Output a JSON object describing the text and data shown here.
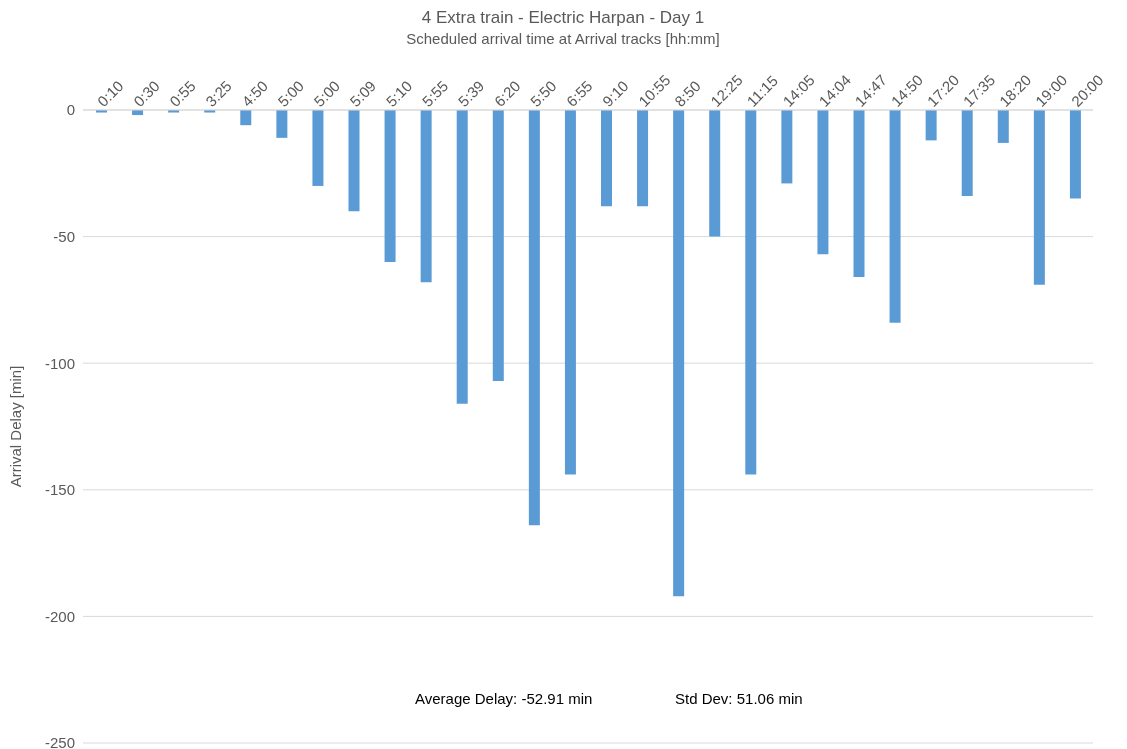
{
  "chart_data": {
    "type": "bar",
    "title": "4 Extra train - Electric Harpan - Day 1",
    "xlabel": "Scheduled arrival time at Arrival tracks [hh:mm]",
    "ylabel": "Arrival Delay [min]",
    "categories": [
      "0:10",
      "0:30",
      "0:55",
      "3:25",
      "4:50",
      "5:00",
      "5:00",
      "5:09",
      "5:10",
      "5:55",
      "5:39",
      "6:20",
      "5:50",
      "6:55",
      "9:10",
      "10:55",
      "8:50",
      "12:25",
      "11:15",
      "14:05",
      "14:04",
      "14:47",
      "14:50",
      "17:20",
      "17:35",
      "18:20",
      "19:00",
      "20:00"
    ],
    "values": [
      -1,
      -2,
      -1,
      -1,
      -6,
      -11,
      -30,
      -40,
      -60,
      -68,
      -116,
      -107,
      -164,
      -144,
      -38,
      -38,
      -192,
      -50,
      -144,
      -29,
      -57,
      -66,
      -84,
      -12,
      -34,
      -13,
      -69,
      -35
    ],
    "color": "#5b9bd5",
    "ylim": [
      -250,
      0
    ],
    "yticks": [
      -250,
      -200,
      -150,
      -100,
      -50,
      0
    ],
    "grid": "y",
    "annotations": [
      "Average Delay: -52.91 min",
      "Std Dev: 51.06 min"
    ]
  }
}
